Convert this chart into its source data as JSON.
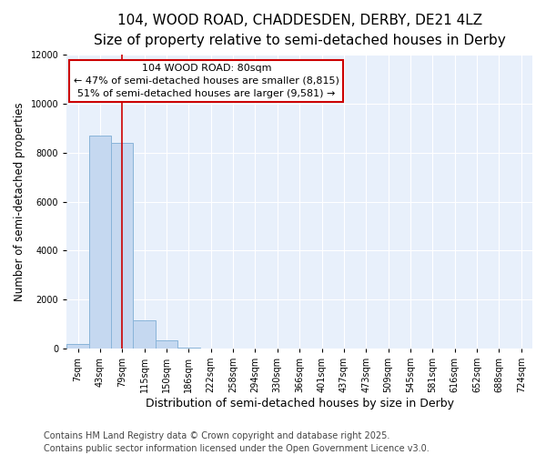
{
  "title": "104, WOOD ROAD, CHADDESDEN, DERBY, DE21 4LZ",
  "subtitle": "Size of property relative to semi-detached houses in Derby",
  "xlabel": "Distribution of semi-detached houses by size in Derby",
  "ylabel": "Number of semi-detached properties",
  "bar_color": "#c5d8f0",
  "bar_edge_color": "#89b4d9",
  "background_color": "#e8f0fb",
  "categories": [
    "7sqm",
    "43sqm",
    "79sqm",
    "115sqm",
    "150sqm",
    "186sqm",
    "222sqm",
    "258sqm",
    "294sqm",
    "330sqm",
    "366sqm",
    "401sqm",
    "437sqm",
    "473sqm",
    "509sqm",
    "545sqm",
    "581sqm",
    "616sqm",
    "652sqm",
    "688sqm",
    "724sqm"
  ],
  "values": [
    200,
    8700,
    8400,
    1150,
    350,
    50,
    5,
    0,
    0,
    0,
    0,
    0,
    0,
    0,
    0,
    0,
    0,
    0,
    0,
    0,
    0
  ],
  "ylim": [
    0,
    12000
  ],
  "vline_x": 2.0,
  "vline_color": "#cc0000",
  "annotation_text": "104 WOOD ROAD: 80sqm\n← 47% of semi-detached houses are smaller (8,815)\n51% of semi-detached houses are larger (9,581) →",
  "annotation_box_color": "#ffffff",
  "annotation_border_color": "#cc0000",
  "footer": "Contains HM Land Registry data © Crown copyright and database right 2025.\nContains public sector information licensed under the Open Government Licence v3.0.",
  "title_fontsize": 11,
  "subtitle_fontsize": 9.5,
  "ylabel_fontsize": 8.5,
  "xlabel_fontsize": 9,
  "tick_fontsize": 7,
  "ann_fontsize": 8,
  "footer_fontsize": 7
}
